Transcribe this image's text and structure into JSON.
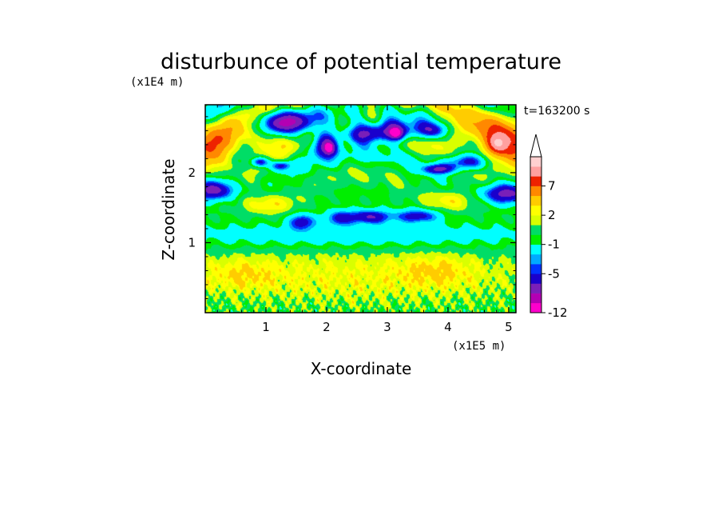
{
  "chart_data": {
    "type": "heatmap",
    "title": "disturbunce of potential temperature",
    "xlabel": "X-coordinate",
    "ylabel": "Z-coordinate",
    "x_unit": "(x1E5 m)",
    "y_unit": "(x1E4 m)",
    "time_label": "t=163200 s",
    "xlim": [
      0,
      5.12
    ],
    "ylim": [
      0,
      2.97
    ],
    "x_ticks": [
      {
        "value": 1,
        "label": "1"
      },
      {
        "value": 2,
        "label": "2"
      },
      {
        "value": 3,
        "label": "3"
      },
      {
        "value": 4,
        "label": "4"
      },
      {
        "value": 5,
        "label": "5"
      }
    ],
    "y_ticks": [
      {
        "value": 1,
        "label": "1"
      },
      {
        "value": 2,
        "label": "2"
      }
    ],
    "grid": false,
    "colorbar": {
      "extend": "max",
      "levels": [
        -12,
        -10,
        -9,
        -7,
        -5,
        -4,
        -3,
        -1,
        0,
        1,
        2,
        3,
        5,
        7,
        9,
        11
      ],
      "colors": [
        "#ff00cc",
        "#b300b3",
        "#7a1fb8",
        "#1a00cc",
        "#0033ff",
        "#00aaff",
        "#00ffff",
        "#00ee00",
        "#00dd66",
        "#d9ff00",
        "#ffff00",
        "#ffcc00",
        "#ff8800",
        "#ee2200",
        "#ffa0a0",
        "#ffd0d0"
      ],
      "labels": [
        {
          "value": -12,
          "text": "-12"
        },
        {
          "value": -5,
          "text": "-5"
        },
        {
          "value": -1,
          "text": "-1"
        },
        {
          "value": 2,
          "text": "2"
        },
        {
          "value": 7,
          "text": "7"
        }
      ]
    },
    "field_features": [
      {
        "x": 0.15,
        "z": 2.35,
        "sx": 0.25,
        "sz": 0.25,
        "amp": 6
      },
      {
        "x": 4.95,
        "z": 2.45,
        "sx": 0.35,
        "sz": 0.3,
        "amp": 7
      },
      {
        "x": 4.8,
        "z": 2.4,
        "sx": 0.12,
        "sz": 0.1,
        "amp": 4
      },
      {
        "x": 0.15,
        "z": 1.75,
        "sx": 0.25,
        "sz": 0.1,
        "amp": -8
      },
      {
        "x": 4.95,
        "z": 1.7,
        "sx": 0.3,
        "sz": 0.1,
        "amp": -8
      },
      {
        "x": 1.6,
        "z": 1.3,
        "sx": 0.15,
        "sz": 0.08,
        "amp": -6
      },
      {
        "x": 2.7,
        "z": 1.37,
        "sx": 0.25,
        "sz": 0.07,
        "amp": -7
      },
      {
        "x": 3.5,
        "z": 1.38,
        "sx": 0.25,
        "sz": 0.07,
        "amp": -6
      },
      {
        "x": 2.2,
        "z": 1.35,
        "sx": 0.15,
        "sz": 0.08,
        "amp": -5
      },
      {
        "x": 1.3,
        "z": 2.72,
        "sx": 0.3,
        "sz": 0.12,
        "amp": -8
      },
      {
        "x": 2.6,
        "z": 2.55,
        "sx": 0.3,
        "sz": 0.1,
        "amp": -8
      },
      {
        "x": 3.1,
        "z": 2.6,
        "sx": 0.25,
        "sz": 0.1,
        "amp": -7
      },
      {
        "x": 1.95,
        "z": 2.4,
        "sx": 0.15,
        "sz": 0.13,
        "amp": -8
      },
      {
        "x": 2.05,
        "z": 2.35,
        "sx": 0.06,
        "sz": 0.06,
        "amp": -5
      },
      {
        "x": 3.15,
        "z": 2.55,
        "sx": 0.08,
        "sz": 0.06,
        "amp": -6
      },
      {
        "x": 0.9,
        "z": 2.15,
        "sx": 0.1,
        "sz": 0.05,
        "amp": -7
      },
      {
        "x": 1.25,
        "z": 2.1,
        "sx": 0.12,
        "sz": 0.05,
        "amp": -6
      },
      {
        "x": 3.85,
        "z": 2.05,
        "sx": 0.18,
        "sz": 0.05,
        "amp": -7
      },
      {
        "x": 4.3,
        "z": 2.15,
        "sx": 0.25,
        "sz": 0.08,
        "amp": -7
      },
      {
        "x": 3.75,
        "z": 2.6,
        "sx": 0.2,
        "sz": 0.08,
        "amp": -6
      },
      {
        "x": 0.9,
        "z": 2.5,
        "sx": 0.3,
        "sz": 0.15,
        "amp": 4
      },
      {
        "x": 4.1,
        "z": 2.6,
        "sx": 0.25,
        "sz": 0.15,
        "amp": 4
      },
      {
        "x": 2.7,
        "z": 2.85,
        "sx": 0.4,
        "sz": 0.1,
        "amp": 3
      },
      {
        "x": 1.05,
        "z": 1.55,
        "sx": 0.3,
        "sz": 0.1,
        "amp": 3
      },
      {
        "x": 4.05,
        "z": 1.6,
        "sx": 0.3,
        "sz": 0.1,
        "amp": 3
      },
      {
        "x": 2.5,
        "z": 1.1,
        "sx": 2.5,
        "sz": 0.12,
        "amp": -2.5
      },
      {
        "x": 2.5,
        "z": 0.5,
        "sx": 2.5,
        "sz": 0.3,
        "amp": 2.2
      },
      {
        "x": 0.6,
        "z": 0.55,
        "sx": 0.4,
        "sz": 0.15,
        "amp": 1.8
      },
      {
        "x": 3.8,
        "z": 0.6,
        "sx": 0.4,
        "sz": 0.15,
        "amp": 1.8
      }
    ]
  }
}
